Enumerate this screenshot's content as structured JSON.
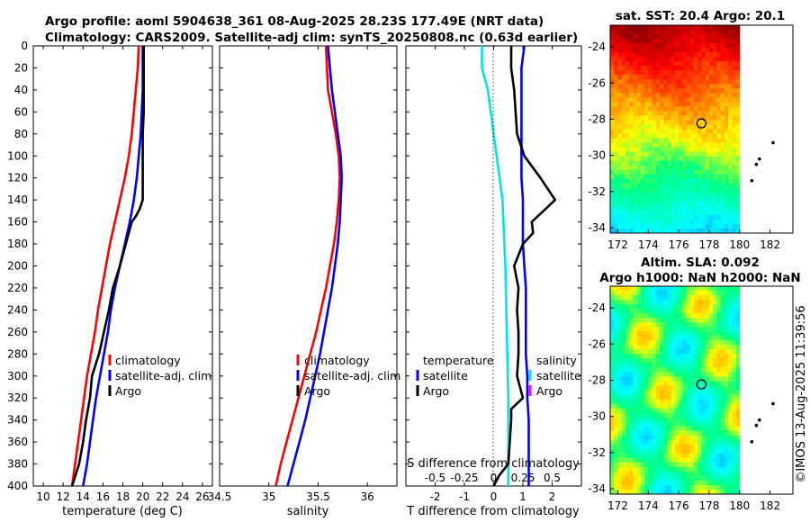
{
  "title_line1": "Argo profile: aoml 5904638_361 08-Aug-2025 28.23S 177.49E (NRT data)",
  "title_line2": "Climatology: CARS2009. Satellite-adj clim: synTS_20250808.nc (0.63d earlier)",
  "side_label": "©IMOS 13-Aug-2025 11:39:56",
  "colors": {
    "climatology": "#ff0000",
    "satellite": "#0000ff",
    "argo": "#000000",
    "temperature_diff": "#00e5e5",
    "salinity_diff_legend": "#ff00ff"
  },
  "chart_data": [
    {
      "type": "line",
      "id": "temperature",
      "xlabel": "temperature (deg C)",
      "xlim": [
        9,
        27
      ],
      "xticks": [
        10,
        12,
        14,
        16,
        18,
        20,
        22,
        24,
        26
      ],
      "ylim": [
        0,
        400
      ],
      "yticks": [
        0,
        20,
        40,
        60,
        80,
        100,
        120,
        140,
        160,
        180,
        200,
        220,
        240,
        260,
        280,
        300,
        320,
        340,
        360,
        380,
        400
      ],
      "legend": [
        "climatology",
        "satellite-adj. clim",
        "Argo"
      ],
      "series": [
        {
          "name": "climatology",
          "color": "climatology",
          "depth": [
            0,
            20,
            40,
            60,
            80,
            100,
            120,
            140,
            160,
            180,
            200,
            220,
            240,
            260,
            280,
            300,
            320,
            340,
            360,
            380,
            400
          ],
          "values": [
            19.6,
            19.5,
            19.3,
            19.1,
            18.9,
            18.6,
            18.2,
            17.7,
            17.2,
            16.7,
            16.3,
            15.9,
            15.5,
            15.2,
            14.8,
            14.4,
            14.1,
            13.8,
            13.5,
            13.2,
            12.9
          ]
        },
        {
          "name": "satellite-adj. clim",
          "color": "satellite",
          "depth": [
            0,
            20,
            40,
            60,
            80,
            100,
            120,
            140,
            160,
            180,
            200,
            220,
            240,
            260,
            280,
            300,
            320,
            340,
            360,
            380,
            400
          ],
          "values": [
            20.0,
            20.0,
            20.0,
            19.9,
            19.8,
            19.6,
            19.4,
            19.1,
            18.7,
            18.2,
            17.7,
            17.2,
            16.8,
            16.5,
            16.1,
            15.7,
            15.3,
            15.0,
            14.7,
            14.4,
            14.0
          ]
        },
        {
          "name": "Argo",
          "color": "argo",
          "depth": [
            0,
            20,
            40,
            60,
            80,
            100,
            120,
            140,
            148,
            155,
            160,
            170,
            180,
            200,
            220,
            240,
            260,
            280,
            300,
            310,
            320,
            340,
            360,
            380,
            400
          ],
          "values": [
            20.1,
            20.1,
            20.1,
            20.1,
            20.0,
            20.0,
            20.0,
            20.0,
            19.7,
            19.3,
            18.9,
            18.6,
            18.3,
            17.7,
            17.0,
            16.6,
            16.1,
            15.6,
            14.9,
            14.8,
            14.7,
            14.3,
            14.0,
            13.6,
            12.9
          ]
        }
      ]
    },
    {
      "type": "line",
      "id": "salinity",
      "xlabel": "salinity",
      "xlim": [
        34.5,
        36.3
      ],
      "xticks": [
        34.5,
        35,
        35.5,
        36
      ],
      "ylim": [
        0,
        400
      ],
      "legend": [
        "climatology",
        "satellite-adj. clim",
        "Argo"
      ],
      "series": [
        {
          "name": "climatology",
          "color": "climatology",
          "depth": [
            0,
            20,
            40,
            60,
            80,
            100,
            120,
            140,
            160,
            180,
            200,
            220,
            240,
            260,
            280,
            300,
            320,
            340,
            360,
            380,
            400
          ],
          "values": [
            35.58,
            35.59,
            35.6,
            35.64,
            35.68,
            35.71,
            35.72,
            35.71,
            35.69,
            35.66,
            35.62,
            35.58,
            35.53,
            35.48,
            35.42,
            35.36,
            35.3,
            35.24,
            35.18,
            35.12,
            35.07
          ]
        },
        {
          "name": "satellite-adj. clim",
          "color": "satellite",
          "depth": [
            0,
            20,
            40,
            60,
            80,
            100,
            120,
            140,
            160,
            180,
            200,
            220,
            240,
            260,
            280,
            300,
            320,
            340,
            360,
            380,
            400
          ],
          "values": [
            35.6,
            35.62,
            35.64,
            35.67,
            35.7,
            35.73,
            35.74,
            35.73,
            35.72,
            35.7,
            35.67,
            35.64,
            35.6,
            35.56,
            35.52,
            35.47,
            35.42,
            35.37,
            35.31,
            35.25,
            35.19
          ]
        },
        {
          "name": "Argo",
          "color": "argo",
          "depth": [],
          "values": []
        }
      ]
    },
    {
      "type": "line",
      "id": "difference",
      "xlabel": "T difference from climatology",
      "xlabel_top": "S difference from climatology",
      "xlim": [
        -3,
        3
      ],
      "xticks": [
        -2,
        -1,
        0,
        1,
        2
      ],
      "xticks_salinity": [
        -0.5,
        -0.25,
        0,
        0.25,
        0.5
      ],
      "ylim": [
        0,
        400
      ],
      "legend_temperature": {
        "title": "temperature",
        "items": [
          "satellite",
          "Argo"
        ]
      },
      "legend_salinity": {
        "title": "salinity",
        "items": [
          "satellite",
          "Argo"
        ]
      },
      "series": [
        {
          "name": "temperature satellite",
          "color": "temperature_diff",
          "depth": [
            0,
            20,
            40,
            60,
            80,
            100,
            140,
            200,
            260,
            320,
            380,
            400
          ],
          "values": [
            -0.4,
            -0.4,
            -0.2,
            -0.1,
            0.0,
            0.1,
            0.3,
            0.4,
            0.45,
            0.5,
            0.5,
            0.5
          ]
        },
        {
          "name": "salinity satellite",
          "color": "satellite",
          "depth": [
            0,
            20,
            40,
            60,
            80,
            100,
            120,
            140,
            160,
            180,
            200,
            220,
            240,
            260,
            280,
            300,
            320,
            340,
            360,
            380,
            400
          ],
          "values": [
            1.05,
            0.95,
            0.95,
            0.95,
            0.95,
            0.95,
            0.95,
            1.0,
            1.0,
            1.0,
            1.05,
            1.1,
            1.1,
            1.1,
            1.1,
            1.15,
            1.15,
            1.2,
            1.2,
            1.2,
            1.2
          ]
        },
        {
          "name": "Argo",
          "color": "argo",
          "depth": [
            0,
            20,
            40,
            60,
            80,
            100,
            120,
            140,
            150,
            160,
            170,
            180,
            200,
            220,
            240,
            260,
            280,
            300,
            310,
            320,
            330,
            340,
            360,
            380,
            390,
            400
          ],
          "values": [
            0.6,
            0.6,
            0.7,
            0.75,
            0.8,
            1.05,
            1.6,
            2.1,
            1.7,
            1.3,
            1.35,
            1.0,
            0.7,
            0.85,
            0.8,
            0.85,
            0.85,
            0.8,
            0.9,
            1.0,
            0.6,
            0.6,
            0.55,
            0.5,
            0.2,
            0.0
          ]
        }
      ]
    },
    {
      "type": "heatmap",
      "id": "sst_map",
      "title": "sat. SST: 20.4 Argo: 20.1",
      "xlim": [
        171.5,
        183.5
      ],
      "ylim": [
        -34.3,
        -22.8
      ],
      "xticks": [
        172,
        174,
        176,
        178,
        180,
        182
      ],
      "yticks": [
        -24,
        -26,
        -28,
        -30,
        -32,
        -34
      ],
      "profile_location": [
        177.49,
        -28.23
      ],
      "data_extent_lon": [
        171.5,
        180
      ]
    },
    {
      "type": "heatmap",
      "id": "sla_map",
      "title_line1": "Altim. SLA: 0.092",
      "title_line2": "Argo h1000: NaN h2000: NaN",
      "xlim": [
        171.5,
        183.5
      ],
      "ylim": [
        -34.3,
        -22.8
      ],
      "xticks": [
        172,
        174,
        176,
        178,
        180,
        182
      ],
      "yticks": [
        -24,
        -26,
        -28,
        -30,
        -32,
        -34
      ],
      "profile_location": [
        177.49,
        -28.23
      ],
      "data_extent_lon": [
        171.5,
        180
      ]
    }
  ]
}
